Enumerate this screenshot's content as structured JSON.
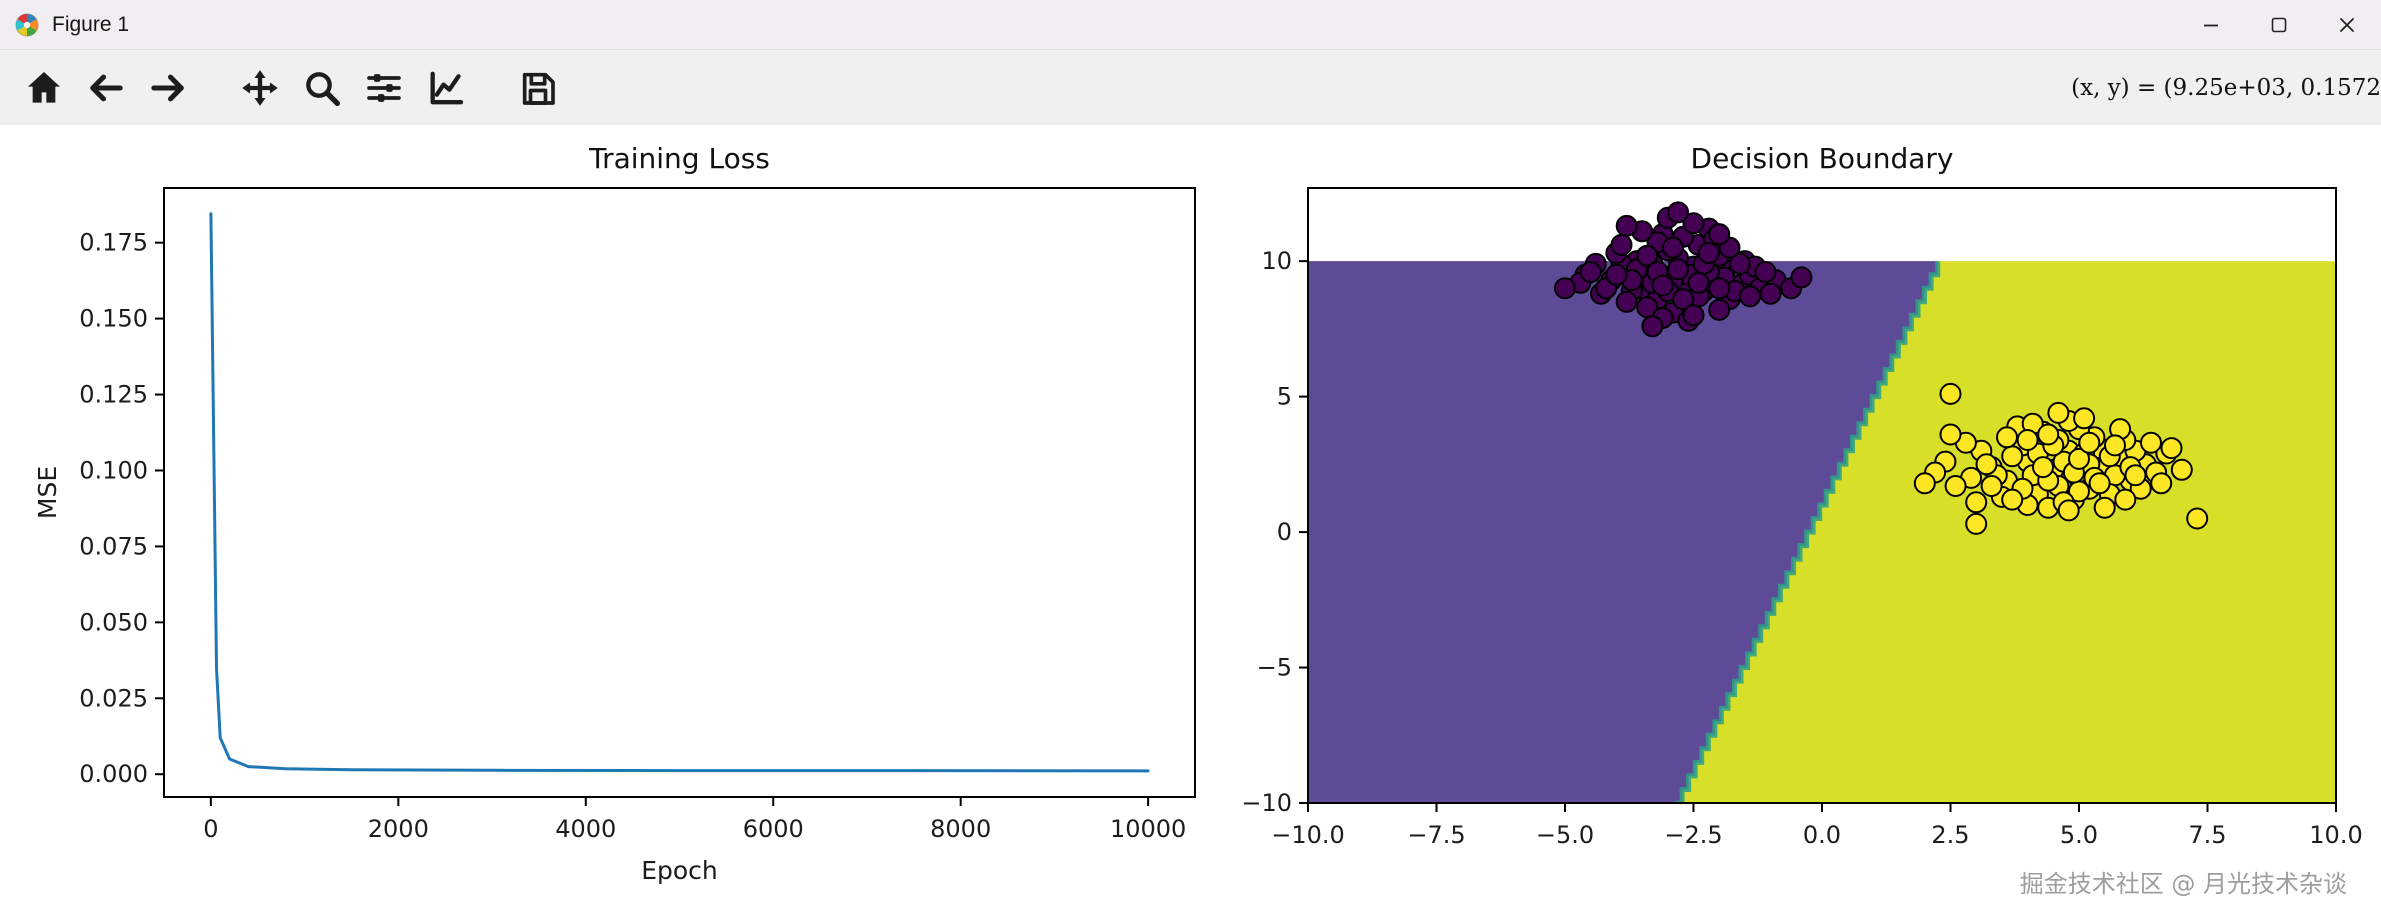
{
  "window": {
    "title": "Figure 1",
    "controls": [
      {
        "id": "minimize",
        "icon": "minimize-icon"
      },
      {
        "id": "maximize",
        "icon": "maximize-icon"
      },
      {
        "id": "close",
        "icon": "close-icon"
      }
    ]
  },
  "toolbar": {
    "buttons": [
      {
        "id": "home",
        "icon": "home-icon"
      },
      {
        "id": "back",
        "icon": "back-arrow-icon"
      },
      {
        "id": "forward",
        "icon": "forward-arrow-icon"
      },
      {
        "id": "pan",
        "icon": "pan-move-icon"
      },
      {
        "id": "zoom",
        "icon": "zoom-magnifier-icon"
      },
      {
        "id": "configure-subplots",
        "icon": "sliders-icon"
      },
      {
        "id": "customize",
        "icon": "line-chart-icon"
      },
      {
        "id": "save",
        "icon": "save-floppy-icon"
      }
    ],
    "status_readout": "(x, y) = (9.25e+03, 0.1572"
  },
  "watermark": "掘金技术社区 @ 月光技术杂谈",
  "chart_data": [
    {
      "id": "training-loss",
      "type": "line",
      "title": "Training Loss",
      "xlabel": "Epoch",
      "ylabel": "MSE",
      "xlim": [
        -500,
        10500
      ],
      "ylim": [
        -0.0075,
        0.193
      ],
      "xticks": [
        0,
        2000,
        4000,
        6000,
        8000,
        10000
      ],
      "xtick_labels": [
        "0",
        "2000",
        "4000",
        "6000",
        "8000",
        "10000"
      ],
      "yticks": [
        0.0,
        0.025,
        0.05,
        0.075,
        0.1,
        0.125,
        0.15,
        0.175
      ],
      "ytick_labels": [
        "0.000",
        "0.025",
        "0.050",
        "0.075",
        "0.100",
        "0.125",
        "0.150",
        "0.175"
      ],
      "grid": false,
      "series": [
        {
          "name": "MSE",
          "color": "#1f77b4",
          "points": [
            [
              0,
              0.1845
            ],
            [
              30,
              0.11
            ],
            [
              60,
              0.035
            ],
            [
              100,
              0.012
            ],
            [
              200,
              0.005
            ],
            [
              400,
              0.0025
            ],
            [
              800,
              0.0018
            ],
            [
              1500,
              0.0015
            ],
            [
              3000,
              0.0013
            ],
            [
              5000,
              0.0012
            ],
            [
              7500,
              0.0012
            ],
            [
              10000,
              0.0011
            ]
          ]
        }
      ]
    },
    {
      "id": "decision-boundary",
      "type": "decision_scatter",
      "title": "Decision Boundary",
      "xlabel": "",
      "ylabel": "",
      "xlim": [
        -10,
        10
      ],
      "ylim": [
        -10,
        12.7
      ],
      "xticks": [
        -10,
        -7.5,
        -5,
        -2.5,
        0,
        2.5,
        5,
        7.5,
        10
      ],
      "xtick_labels": [
        "−10.0",
        "−7.5",
        "−5.0",
        "−2.5",
        "0.0",
        "2.5",
        "5.0",
        "7.5",
        "10.0"
      ],
      "yticks": [
        -10,
        -5,
        0,
        5,
        10
      ],
      "ytick_labels": [
        "−10",
        "−5",
        "0",
        "5",
        "10"
      ],
      "grid": false,
      "regions": {
        "fill_bottom": -10,
        "fill_top": 10,
        "left_color": "#5e4b97",
        "right_color": "#d8df29",
        "boundary": {
          "x_at_bottom": -2.85,
          "x_at_top": 2.25,
          "edge_color": "#2aa187",
          "steps": 40
        }
      },
      "clusters": [
        {
          "name": "class-0",
          "fill": "#440154",
          "edge": "#000000",
          "points": [
            [
              -3.0,
              9.4
            ],
            [
              -2.5,
              9.8
            ],
            [
              -3.5,
              9.0
            ],
            [
              -2.1,
              9.2
            ],
            [
              -3.8,
              9.6
            ],
            [
              -2.8,
              10.1
            ],
            [
              -3.2,
              8.6
            ],
            [
              -2.3,
              8.9
            ],
            [
              -4.1,
              9.3
            ],
            [
              -1.9,
              9.7
            ],
            [
              -3.0,
              10.4
            ],
            [
              -2.6,
              8.4
            ],
            [
              -3.6,
              10.0
            ],
            [
              -2.0,
              10.2
            ],
            [
              -4.3,
              8.8
            ],
            [
              -1.6,
              9.1
            ],
            [
              -3.3,
              9.9
            ],
            [
              -2.9,
              8.1
            ],
            [
              -3.9,
              9.9
            ],
            [
              -2.4,
              10.6
            ],
            [
              -1.4,
              9.5
            ],
            [
              -3.1,
              11.0
            ],
            [
              -4.6,
              9.5
            ],
            [
              -2.7,
              9.0
            ],
            [
              -3.4,
              8.3
            ],
            [
              -1.8,
              8.6
            ],
            [
              -2.2,
              11.2
            ],
            [
              -3.7,
              8.9
            ],
            [
              -4.0,
              10.3
            ],
            [
              -1.2,
              9.0
            ],
            [
              -2.6,
              9.5
            ],
            [
              -3.2,
              10.7
            ],
            [
              -2.0,
              8.2
            ],
            [
              -4.4,
              9.9
            ],
            [
              -1.5,
              10.0
            ],
            [
              -2.9,
              9.3
            ],
            [
              -3.5,
              9.4
            ],
            [
              -2.4,
              8.7
            ],
            [
              -3.0,
              8.9
            ],
            [
              -1.9,
              9.4
            ],
            [
              -4.2,
              9.0
            ],
            [
              -2.7,
              10.9
            ],
            [
              -3.8,
              8.5
            ],
            [
              -1.3,
              9.8
            ],
            [
              -2.2,
              9.6
            ],
            [
              -3.3,
              9.2
            ],
            [
              -0.9,
              9.3
            ],
            [
              -4.7,
              9.2
            ],
            [
              -2.5,
              11.4
            ],
            [
              -3.6,
              9.7
            ],
            [
              -2.1,
              10.8
            ],
            [
              -3.1,
              7.9
            ],
            [
              -1.7,
              8.9
            ],
            [
              -2.8,
              9.7
            ],
            [
              -3.9,
              10.6
            ],
            [
              -1.1,
              9.6
            ],
            [
              -2.3,
              9.9
            ],
            [
              -3.4,
              10.2
            ],
            [
              -2.6,
              7.8
            ],
            [
              -4.5,
              9.6
            ],
            [
              -0.6,
              9.0
            ],
            [
              -3.0,
              11.6
            ],
            [
              -2.0,
              9.0
            ],
            [
              -3.7,
              9.3
            ],
            [
              -1.6,
              9.9
            ],
            [
              -2.9,
              10.5
            ],
            [
              -3.2,
              9.6
            ],
            [
              -2.4,
              9.2
            ],
            [
              -4.0,
              9.5
            ],
            [
              -1.4,
              8.7
            ],
            [
              -2.7,
              8.6
            ],
            [
              -3.5,
              11.1
            ],
            [
              -0.4,
              9.4
            ],
            [
              -2.2,
              10.3
            ],
            [
              -3.1,
              9.1
            ],
            [
              -5.0,
              9.0
            ],
            [
              -1.8,
              10.5
            ],
            [
              -2.5,
              8.0
            ],
            [
              -3.8,
              11.3
            ],
            [
              -2.0,
              11.0
            ],
            [
              -3.3,
              7.6
            ],
            [
              -2.8,
              11.8
            ],
            [
              -1.0,
              8.8
            ]
          ]
        },
        {
          "name": "class-1",
          "fill": "#fde725",
          "edge": "#000000",
          "points": [
            [
              4.5,
              2.3
            ],
            [
              5.0,
              2.0
            ],
            [
              4.0,
              2.6
            ],
            [
              5.5,
              2.4
            ],
            [
              3.6,
              1.9
            ],
            [
              4.8,
              3.0
            ],
            [
              5.2,
              1.6
            ],
            [
              4.2,
              1.4
            ],
            [
              5.8,
              2.7
            ],
            [
              3.3,
              2.4
            ],
            [
              4.6,
              3.4
            ],
            [
              5.4,
              3.1
            ],
            [
              3.9,
              3.2
            ],
            [
              6.0,
              1.9
            ],
            [
              4.4,
              0.9
            ],
            [
              5.1,
              2.9
            ],
            [
              3.5,
              1.3
            ],
            [
              5.7,
              2.1
            ],
            [
              4.1,
              2.1
            ],
            [
              6.3,
              2.5
            ],
            [
              2.9,
              2.0
            ],
            [
              4.9,
              1.2
            ],
            [
              5.3,
              3.5
            ],
            [
              3.7,
              2.8
            ],
            [
              6.1,
              3.0
            ],
            [
              4.3,
              3.7
            ],
            [
              5.6,
              1.4
            ],
            [
              3.1,
              3.0
            ],
            [
              4.7,
              2.6
            ],
            [
              5.9,
              3.4
            ],
            [
              2.6,
              1.7
            ],
            [
              5.0,
              3.8
            ],
            [
              4.0,
              1.0
            ],
            [
              6.5,
              2.2
            ],
            [
              3.4,
              2.1
            ],
            [
              5.2,
              2.5
            ],
            [
              4.6,
              1.7
            ],
            [
              6.2,
              1.6
            ],
            [
              2.4,
              2.6
            ],
            [
              4.8,
              4.1
            ],
            [
              5.5,
              0.9
            ],
            [
              3.8,
              3.9
            ],
            [
              6.7,
              2.9
            ],
            [
              4.2,
              2.9
            ],
            [
              5.0,
              1.5
            ],
            [
              3.0,
              1.1
            ],
            [
              5.8,
              3.8
            ],
            [
              4.5,
              3.2
            ],
            [
              6.4,
              3.3
            ],
            [
              2.2,
              2.2
            ],
            [
              4.9,
              2.2
            ],
            [
              5.3,
              2.0
            ],
            [
              3.6,
              3.5
            ],
            [
              6.0,
              2.4
            ],
            [
              4.1,
              4.0
            ],
            [
              5.6,
              2.8
            ],
            [
              2.8,
              3.3
            ],
            [
              4.4,
              1.9
            ],
            [
              6.6,
              1.8
            ],
            [
              3.2,
              2.5
            ],
            [
              5.1,
              4.2
            ],
            [
              4.7,
              1.1
            ],
            [
              5.9,
              1.2
            ],
            [
              2.0,
              1.8
            ],
            [
              4.3,
              2.4
            ],
            [
              5.4,
              1.8
            ],
            [
              3.9,
              1.6
            ],
            [
              6.1,
              2.1
            ],
            [
              4.6,
              4.4
            ],
            [
              5.7,
              3.2
            ],
            [
              3.3,
              1.7
            ],
            [
              5.0,
              2.7
            ],
            [
              4.0,
              3.4
            ],
            [
              7.0,
              2.3
            ],
            [
              2.5,
              3.6
            ],
            [
              4.8,
              0.8
            ],
            [
              5.2,
              3.3
            ],
            [
              3.7,
              1.2
            ],
            [
              6.8,
              3.1
            ],
            [
              4.4,
              3.6
            ],
            [
              2.5,
              5.1
            ],
            [
              7.3,
              0.5
            ],
            [
              3.0,
              0.3
            ]
          ]
        }
      ]
    }
  ]
}
